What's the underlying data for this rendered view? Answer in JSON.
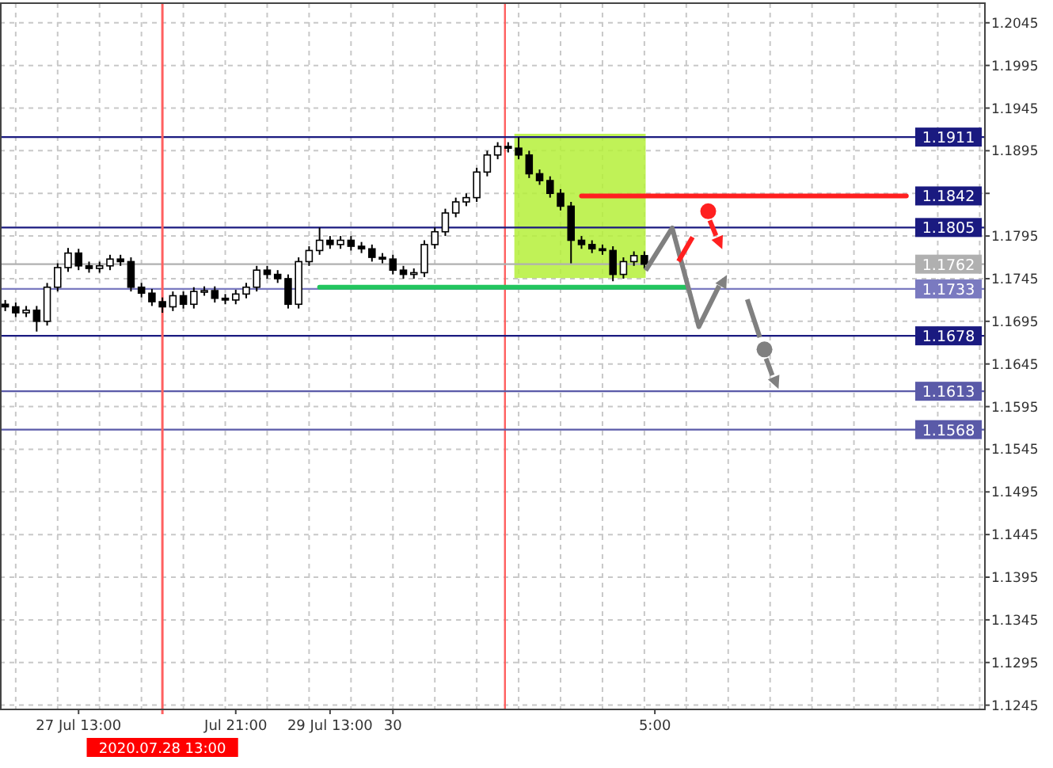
{
  "chart_data": {
    "type": "candlestick",
    "categories": [
      null,
      null,
      null,
      null,
      null,
      null,
      null,
      "27 Jul 13:00",
      null,
      null,
      null,
      null,
      null,
      null,
      null,
      "2020.07.28 13:00",
      null,
      null,
      null,
      null,
      null,
      null,
      "Jul 21:00",
      null,
      null,
      null,
      null,
      null,
      null,
      null,
      null,
      "29 Jul 13:00",
      null,
      null,
      null,
      null,
      null,
      "30",
      null,
      null,
      null,
      null,
      null,
      null,
      null,
      null,
      null,
      null,
      null,
      null,
      null,
      null,
      null,
      null,
      null,
      null,
      null,
      null,
      null,
      null,
      null,
      null,
      "5:00",
      null,
      null,
      null,
      null,
      null,
      null,
      null,
      null,
      null,
      null,
      null,
      null,
      null,
      null,
      null,
      null,
      null,
      null,
      null,
      null,
      null,
      null,
      null,
      null,
      null,
      null,
      null,
      null,
      null,
      null,
      null
    ],
    "ohlc": [
      [
        1.1715,
        1.172,
        1.1707,
        1.1712
      ],
      [
        1.1712,
        1.1717,
        1.17,
        1.1705
      ],
      [
        1.1705,
        1.1713,
        1.17,
        1.1708
      ],
      [
        1.1708,
        1.1713,
        1.1683,
        1.1695
      ],
      [
        1.1695,
        1.174,
        1.169,
        1.1735
      ],
      [
        1.1735,
        1.1763,
        1.173,
        1.1758
      ],
      [
        1.1758,
        1.1781,
        1.1753,
        1.1775
      ],
      [
        1.1775,
        1.178,
        1.1755,
        1.176
      ],
      [
        1.176,
        1.1765,
        1.1752,
        1.1757
      ],
      [
        1.1757,
        1.1765,
        1.1752,
        1.176
      ],
      [
        1.176,
        1.1773,
        1.1755,
        1.1768
      ],
      [
        1.1768,
        1.1773,
        1.176,
        1.1765
      ],
      [
        1.1765,
        1.177,
        1.173,
        1.1735
      ],
      [
        1.1735,
        1.174,
        1.1723,
        1.1728
      ],
      [
        1.1728,
        1.1733,
        1.1713,
        1.1718
      ],
      [
        1.1718,
        1.1723,
        1.1705,
        1.1712
      ],
      [
        1.1712,
        1.173,
        1.1707,
        1.1725
      ],
      [
        1.1725,
        1.173,
        1.171,
        1.1715
      ],
      [
        1.1715,
        1.1735,
        1.171,
        1.173
      ],
      [
        1.173,
        1.1736,
        1.1725,
        1.1731
      ],
      [
        1.1731,
        1.1736,
        1.1717,
        1.1722
      ],
      [
        1.1722,
        1.1727,
        1.1715,
        1.172
      ],
      [
        1.172,
        1.1732,
        1.1715,
        1.1727
      ],
      [
        1.1727,
        1.174,
        1.1722,
        1.1735
      ],
      [
        1.1735,
        1.176,
        1.173,
        1.1755
      ],
      [
        1.1755,
        1.176,
        1.1745,
        1.175
      ],
      [
        1.175,
        1.1755,
        1.174,
        1.1745
      ],
      [
        1.1745,
        1.175,
        1.171,
        1.1715
      ],
      [
        1.1715,
        1.177,
        1.171,
        1.1765
      ],
      [
        1.1765,
        1.1783,
        1.176,
        1.1778
      ],
      [
        1.1778,
        1.1805,
        1.1773,
        1.179
      ],
      [
        1.179,
        1.1795,
        1.178,
        1.1785
      ],
      [
        1.1785,
        1.1795,
        1.178,
        1.179
      ],
      [
        1.179,
        1.1795,
        1.1778,
        1.1783
      ],
      [
        1.1783,
        1.1788,
        1.1775,
        1.178
      ],
      [
        1.178,
        1.1785,
        1.1765,
        1.177
      ],
      [
        1.177,
        1.1775,
        1.1763,
        1.1768
      ],
      [
        1.1768,
        1.1773,
        1.175,
        1.1755
      ],
      [
        1.1755,
        1.176,
        1.1745,
        1.175
      ],
      [
        1.175,
        1.1757,
        1.1745,
        1.1752
      ],
      [
        1.1752,
        1.179,
        1.1747,
        1.1785
      ],
      [
        1.1785,
        1.1805,
        1.178,
        1.18
      ],
      [
        1.18,
        1.1827,
        1.1795,
        1.1822
      ],
      [
        1.1822,
        1.184,
        1.1817,
        1.1835
      ],
      [
        1.1835,
        1.1845,
        1.183,
        1.184
      ],
      [
        1.184,
        1.1875,
        1.1835,
        1.187
      ],
      [
        1.187,
        1.1895,
        1.1865,
        1.189
      ],
      [
        1.189,
        1.1905,
        1.1885,
        1.19
      ],
      [
        1.19,
        1.1905,
        1.1893,
        1.1898
      ],
      [
        1.1898,
        1.1911,
        1.1885,
        1.189
      ],
      [
        1.189,
        1.1895,
        1.1863,
        1.1868
      ],
      [
        1.1868,
        1.1873,
        1.1855,
        1.186
      ],
      [
        1.186,
        1.1865,
        1.184,
        1.1845
      ],
      [
        1.1845,
        1.185,
        1.1825,
        1.183
      ],
      [
        1.183,
        1.1835,
        1.1763,
        1.179
      ],
      [
        1.179,
        1.1795,
        1.178,
        1.1785
      ],
      [
        1.1785,
        1.179,
        1.1775,
        1.178
      ],
      [
        1.178,
        1.1785,
        1.1773,
        1.1778
      ],
      [
        1.1778,
        1.1783,
        1.1742,
        1.175
      ],
      [
        1.175,
        1.177,
        1.1745,
        1.1765
      ],
      [
        1.1765,
        1.1777,
        1.176,
        1.1772
      ],
      [
        1.1772,
        1.1777,
        1.1757,
        1.1762
      ],
      null,
      null,
      null,
      null,
      null,
      null,
      null,
      null,
      null,
      null,
      null,
      null,
      null,
      null,
      null,
      null,
      null,
      null,
      null,
      null,
      null,
      null,
      null,
      null,
      null,
      null,
      null,
      null,
      null,
      null,
      null,
      null
    ],
    "series": [
      {
        "type": "line",
        "color": "#22c55e",
        "values": [
          null,
          null,
          null,
          null,
          null,
          null,
          null,
          null,
          null,
          null,
          null,
          null,
          null,
          null,
          null,
          null,
          null,
          null,
          null,
          null,
          null,
          null,
          null,
          null,
          null,
          null,
          null,
          null,
          null,
          null,
          1.1735,
          1.1735,
          1.1735,
          1.1735,
          1.1735,
          1.1735,
          1.1735,
          1.1735,
          1.1735,
          1.1735,
          1.1735,
          1.1735,
          1.1735,
          1.1735,
          1.1735,
          1.1735,
          1.1735,
          1.1735,
          1.1735,
          1.1735,
          1.1735,
          1.1735,
          1.1735,
          1.1735,
          1.1735,
          1.1735,
          1.1735,
          1.1735,
          1.1735,
          1.1735,
          1.1735,
          1.1735,
          1.1735,
          1.1735,
          1.1735,
          1.1735,
          null,
          null,
          null,
          null,
          null,
          null,
          null,
          null,
          null,
          null,
          null,
          null,
          null,
          null,
          null,
          null,
          null,
          null,
          null,
          null,
          null,
          null,
          null,
          null,
          null,
          null,
          null,
          null
        ]
      },
      {
        "type": "line",
        "color": "#ff2020",
        "values": [
          null,
          null,
          null,
          null,
          null,
          null,
          null,
          null,
          null,
          null,
          null,
          null,
          null,
          null,
          null,
          null,
          null,
          null,
          null,
          null,
          null,
          null,
          null,
          null,
          null,
          null,
          null,
          null,
          null,
          null,
          null,
          null,
          null,
          null,
          null,
          null,
          null,
          null,
          null,
          null,
          null,
          null,
          null,
          null,
          null,
          null,
          null,
          null,
          null,
          null,
          null,
          null,
          null,
          null,
          null,
          1.1842,
          1.1842,
          1.1842,
          1.1842,
          1.1842,
          1.1842,
          1.1842,
          1.1842,
          1.1842,
          1.1842,
          1.1842,
          1.1842,
          1.1842,
          1.1842,
          1.1842,
          1.1842,
          1.1842,
          1.1842,
          1.1842,
          1.1842,
          1.1842,
          1.1842,
          1.1842,
          1.1842,
          1.1842,
          1.1842,
          1.1842,
          1.1842,
          1.1842,
          1.1842,
          1.1842,
          1.1842,
          null,
          null,
          null,
          null,
          null,
          null,
          null
        ]
      }
    ],
    "ref_lines": [
      {
        "axis": "y",
        "value": 1.1911,
        "label": "1.1911",
        "color": "#1a1a80"
      },
      {
        "axis": "y",
        "value": 1.1805,
        "label": "1.1805",
        "color": "#1a1a80"
      },
      {
        "axis": "y",
        "value": 1.1762,
        "label": "1.1762",
        "color": "#b0b0b0"
      },
      {
        "axis": "y",
        "value": 1.1733,
        "label": "1.1733",
        "color": "#7a7ac0"
      },
      {
        "axis": "y",
        "value": 1.1678,
        "label": "1.1678",
        "color": "#1a1a80"
      },
      {
        "axis": "y",
        "value": 1.1613,
        "label": "1.1613",
        "color": "#5a5aa8"
      },
      {
        "axis": "y",
        "value": 1.1568,
        "label": "1.1568",
        "color": "#5a5aa8"
      },
      {
        "axis": "x",
        "value": "2020.07.28 13:00",
        "color": "#ff6060"
      }
    ],
    "annotations": [
      "1.1842"
    ],
    "ylim": [
      1.124,
      1.2068
    ],
    "yticks": [
      1.2045,
      1.1995,
      1.1945,
      1.1895,
      {
        "value": 1.1845,
        "label": null
      },
      1.1795,
      1.1745,
      1.1695,
      1.1645,
      1.1595,
      1.1545,
      1.1495,
      1.1445,
      1.1395,
      1.1345,
      1.1295,
      1.1245
    ],
    "grid": true
  }
}
